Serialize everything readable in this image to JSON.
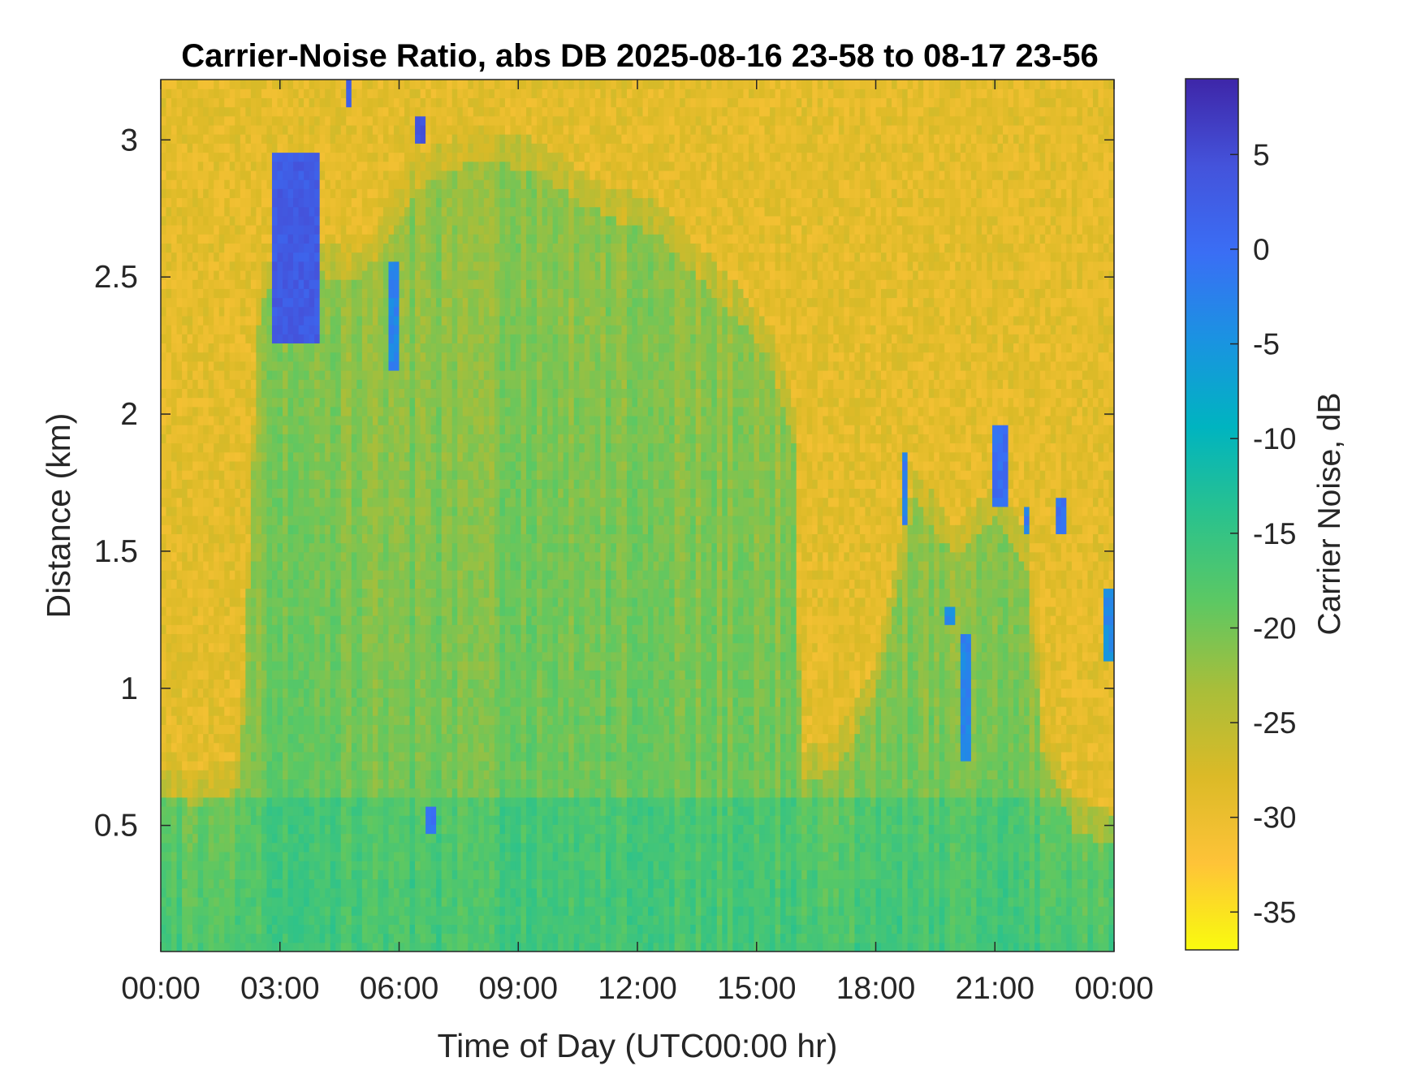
{
  "chart_data": {
    "type": "heatmap",
    "title": "Carrier-Noise Ratio, abs DB 2025-08-16 23-58 to 08-17 23-56",
    "xlabel": "Time of Day (UTC00:00 hr)",
    "ylabel": "Distance (km)",
    "colorbar_label": "Carrier Noise, dB",
    "x_unit": "hours",
    "xlim": [
      0,
      24
    ],
    "ylim": [
      0.04,
      3.22
    ],
    "clim": [
      -37,
      9
    ],
    "x_ticks": [
      0,
      3,
      6,
      9,
      12,
      15,
      18,
      21,
      24
    ],
    "x_tick_labels": [
      "00:00",
      "03:00",
      "06:00",
      "09:00",
      "12:00",
      "15:00",
      "18:00",
      "21:00",
      "00:00"
    ],
    "y_ticks": [
      0.5,
      1,
      1.5,
      2,
      2.5,
      3
    ],
    "y_tick_labels": [
      "0.5",
      "1",
      "1.5",
      "2",
      "2.5",
      "3"
    ],
    "colorbar_ticks": [
      5,
      0,
      -5,
      -10,
      -15,
      -20,
      -25,
      -30,
      -35
    ],
    "colorbar_tick_labels": [
      "5",
      "0",
      "-5",
      "-10",
      "-15",
      "-20",
      "-25",
      "-30",
      "-35"
    ],
    "colormap": [
      "#f9fb0e",
      "#fec338",
      "#dbba27",
      "#a8be3a",
      "#5cc863",
      "#2ac28d",
      "#00b4c0",
      "#1a93e1",
      "#3a6ef5",
      "#4453db",
      "#3e26a8"
    ],
    "grid": false,
    "colorbar": "right",
    "background_db": -29,
    "boundary_layer_top_km": [
      [
        0,
        0.72
      ],
      [
        1,
        0.7
      ],
      [
        2,
        0.75
      ],
      [
        2.5,
        2.55
      ],
      [
        3.5,
        2.65
      ],
      [
        5,
        2.6
      ],
      [
        6.5,
        2.95
      ],
      [
        8,
        3.05
      ],
      [
        9.5,
        3.0
      ],
      [
        10.5,
        2.9
      ],
      [
        11.5,
        2.82
      ],
      [
        12.5,
        2.78
      ],
      [
        13.5,
        2.62
      ],
      [
        14.5,
        2.47
      ],
      [
        15.3,
        2.33
      ],
      [
        16.0,
        2.0
      ],
      [
        16.1,
        0.78
      ],
      [
        17,
        0.82
      ],
      [
        18,
        1.1
      ],
      [
        19,
        1.8
      ],
      [
        20,
        1.6
      ],
      [
        21,
        1.75
      ],
      [
        21.8,
        1.55
      ],
      [
        22.2,
        0.9
      ],
      [
        23,
        0.6
      ],
      [
        24,
        0.55
      ]
    ],
    "features": [
      {
        "kind": "plume",
        "t0": 2.8,
        "t1": 4.0,
        "y0": 2.25,
        "y1": 2.95,
        "db": 3
      },
      {
        "kind": "plume",
        "t0": 5.8,
        "t1": 6.0,
        "y0": 2.15,
        "y1": 2.55,
        "db": -3
      },
      {
        "kind": "plume",
        "t0": 6.4,
        "t1": 6.6,
        "y0": 2.98,
        "y1": 3.1,
        "db": 4
      },
      {
        "kind": "plume",
        "t0": 4.7,
        "t1": 4.85,
        "y0": 3.12,
        "y1": 3.22,
        "db": 2
      },
      {
        "kind": "plume",
        "t0": 6.7,
        "t1": 6.95,
        "y0": 0.48,
        "y1": 0.56,
        "db": 0
      },
      {
        "kind": "plume",
        "t0": 18.7,
        "t1": 18.85,
        "y0": 1.6,
        "y1": 1.85,
        "db": -2
      },
      {
        "kind": "plume",
        "t0": 19.8,
        "t1": 19.95,
        "y0": 1.22,
        "y1": 1.3,
        "db": -4
      },
      {
        "kind": "plume",
        "t0": 20.2,
        "t1": 20.45,
        "y0": 0.75,
        "y1": 1.2,
        "db": -3
      },
      {
        "kind": "plume",
        "t0": 20.9,
        "t1": 21.3,
        "y0": 1.65,
        "y1": 1.95,
        "db": 0
      },
      {
        "kind": "plume",
        "t0": 21.7,
        "t1": 21.9,
        "y0": 1.55,
        "y1": 1.65,
        "db": -2
      },
      {
        "kind": "plume",
        "t0": 22.6,
        "t1": 22.75,
        "y0": 1.55,
        "y1": 1.7,
        "db": 0
      },
      {
        "kind": "plume",
        "t0": 23.8,
        "t1": 24.0,
        "y0": 1.1,
        "y1": 1.35,
        "db": -4
      }
    ]
  }
}
